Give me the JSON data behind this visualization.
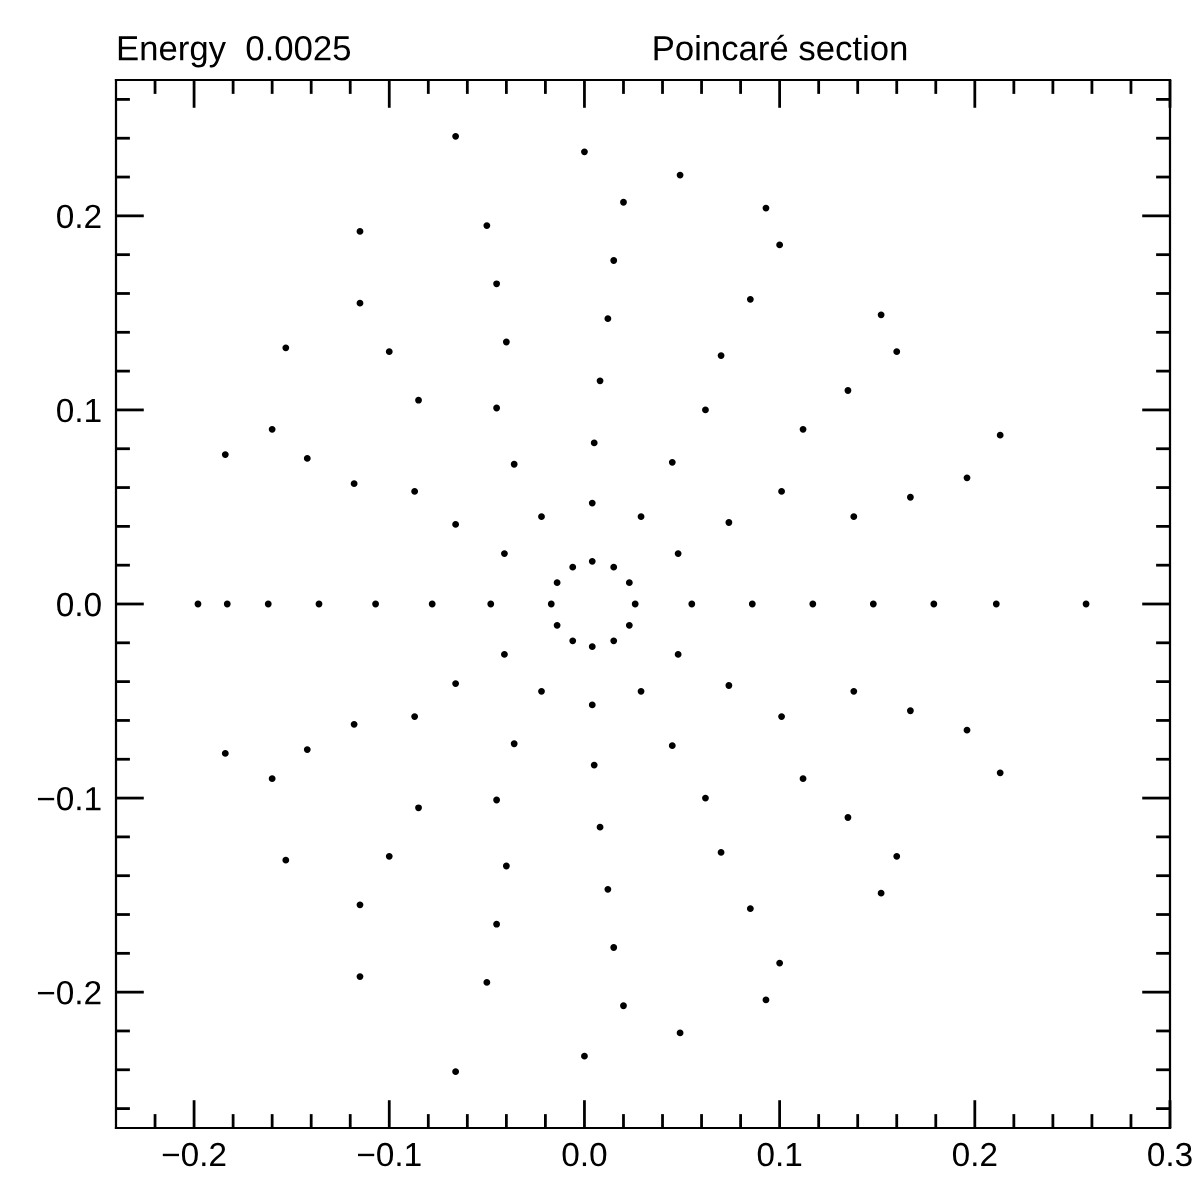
{
  "chart_data": {
    "type": "scatter",
    "title": "Poincaré section",
    "annotations": [
      "Energy  0.0025"
    ],
    "marker": "circle",
    "grid": false,
    "legend": false,
    "xlim": [
      -0.24,
      0.3
    ],
    "ylim": [
      -0.27,
      0.27
    ],
    "xticks": [
      {
        "value": -0.22,
        "label": null
      },
      {
        "value": -0.2,
        "label": "−0.2"
      },
      {
        "value": -0.18,
        "label": null
      },
      {
        "value": -0.16,
        "label": null
      },
      {
        "value": -0.14,
        "label": null
      },
      {
        "value": -0.12,
        "label": null
      },
      {
        "value": -0.1,
        "label": "−0.1"
      },
      {
        "value": -0.08,
        "label": null
      },
      {
        "value": -0.06,
        "label": null
      },
      {
        "value": -0.04,
        "label": null
      },
      {
        "value": -0.02,
        "label": null
      },
      {
        "value": 0.0,
        "label": "0.0"
      },
      {
        "value": 0.02,
        "label": null
      },
      {
        "value": 0.04,
        "label": null
      },
      {
        "value": 0.06,
        "label": null
      },
      {
        "value": 0.08,
        "label": null
      },
      0.1,
      {
        "value": 0.12,
        "label": null
      },
      {
        "value": 0.14,
        "label": null
      },
      {
        "value": 0.16,
        "label": null
      },
      {
        "value": 0.18,
        "label": null
      },
      0.2,
      {
        "value": 0.22,
        "label": null
      },
      {
        "value": 0.24,
        "label": null
      },
      {
        "value": 0.26,
        "label": null
      },
      {
        "value": 0.28,
        "label": null
      },
      0.3
    ],
    "yticks": [
      {
        "value": -0.26,
        "label": null
      },
      {
        "value": -0.24,
        "label": null
      },
      {
        "value": -0.22,
        "label": null
      },
      {
        "value": -0.2,
        "label": "−0.2"
      },
      {
        "value": -0.18,
        "label": null
      },
      {
        "value": -0.16,
        "label": null
      },
      {
        "value": -0.14,
        "label": null
      },
      {
        "value": -0.12,
        "label": null
      },
      {
        "value": -0.1,
        "label": "−0.1"
      },
      {
        "value": -0.08,
        "label": null
      },
      {
        "value": -0.06,
        "label": null
      },
      {
        "value": -0.04,
        "label": null
      },
      {
        "value": -0.02,
        "label": null
      },
      {
        "value": 0.0,
        "label": "0.0"
      },
      {
        "value": 0.02,
        "label": null
      },
      {
        "value": 0.04,
        "label": null
      },
      {
        "value": 0.06,
        "label": null
      },
      {
        "value": 0.08,
        "label": null
      },
      0.1,
      {
        "value": 0.12,
        "label": null
      },
      {
        "value": 0.14,
        "label": null
      },
      {
        "value": 0.16,
        "label": null
      },
      {
        "value": 0.18,
        "label": null
      },
      0.2,
      {
        "value": 0.22,
        "label": null
      },
      {
        "value": 0.24,
        "label": null
      },
      {
        "value": 0.26,
        "label": null
      }
    ],
    "series": [
      {
        "color": "#000000",
        "x": [
          0.026,
          0.023,
          0.015,
          0.004,
          -0.006,
          -0.014,
          -0.017,
          -0.014,
          -0.006,
          0.004,
          0.015,
          0.023
        ],
        "values": [
          0,
          0.011,
          0.019,
          0.022,
          0.019,
          0.011,
          0,
          -0.011,
          -0.019,
          -0.022,
          -0.019,
          -0.011
        ]
      },
      {
        "color": "#000000",
        "x": [
          0.055,
          0.048,
          0.029,
          0.004,
          -0.022,
          -0.041,
          -0.048,
          -0.041,
          -0.022,
          0.004,
          0.029,
          0.048
        ],
        "values": [
          0,
          0.026,
          0.045,
          0.052,
          0.045,
          0.026,
          0,
          -0.026,
          -0.045,
          -0.052,
          -0.045,
          -0.026
        ]
      },
      {
        "color": "#000000",
        "x": [
          0.086,
          0.074,
          0.045,
          0.005,
          -0.036,
          -0.066,
          -0.078,
          -0.066,
          -0.036,
          0.005,
          0.045,
          0.074
        ],
        "values": [
          0,
          0.042,
          0.073,
          0.083,
          0.072,
          0.041,
          0,
          -0.041,
          -0.072,
          -0.083,
          -0.073,
          -0.042
        ]
      },
      {
        "color": "#000000",
        "x": [
          0.117,
          0.101,
          0.062,
          0.008,
          -0.045,
          -0.087,
          -0.107,
          -0.087,
          -0.045,
          0.008,
          0.062,
          0.101
        ],
        "values": [
          0,
          0.058,
          0.1,
          0.115,
          0.101,
          0.058,
          0,
          -0.058,
          -0.101,
          -0.115,
          -0.1,
          -0.058
        ]
      },
      {
        "color": "#000000",
        "x": [
          0.148,
          0.138,
          0.112,
          0.07,
          0.012,
          -0.04,
          -0.085,
          -0.118,
          -0.136,
          -0.118,
          -0.085,
          -0.04,
          0.012,
          0.07,
          0.112,
          0.138
        ],
        "values": [
          0,
          0.045,
          0.09,
          0.128,
          0.147,
          0.135,
          0.105,
          0.062,
          0,
          -0.062,
          -0.105,
          -0.135,
          -0.147,
          -0.128,
          -0.09,
          -0.045
        ]
      },
      {
        "color": "#000000",
        "x": [
          0.179,
          0.167,
          0.135,
          0.085,
          0.015,
          -0.045,
          -0.1,
          -0.142,
          -0.162,
          -0.142,
          -0.1,
          -0.045,
          0.015,
          0.085,
          0.135,
          0.167
        ],
        "values": [
          0,
          0.055,
          0.11,
          0.157,
          0.177,
          0.165,
          0.13,
          0.075,
          0,
          -0.075,
          -0.13,
          -0.165,
          -0.177,
          -0.157,
          -0.11,
          -0.055
        ]
      },
      {
        "color": "#000000",
        "x": [
          0.211,
          0.196,
          0.16,
          0.1,
          0.02,
          -0.05,
          -0.115,
          -0.16,
          -0.183,
          -0.16,
          -0.115,
          -0.05,
          0.02,
          0.1,
          0.16,
          0.196
        ],
        "values": [
          0,
          0.065,
          0.13,
          0.185,
          0.207,
          0.195,
          0.155,
          0.09,
          0,
          -0.09,
          -0.155,
          -0.195,
          -0.207,
          -0.185,
          -0.13,
          -0.065
        ]
      },
      {
        "color": "#000000",
        "x": [
          0.257,
          0.213,
          0.152,
          0.093,
          0.049,
          0.0,
          -0.066,
          -0.115,
          -0.153,
          -0.184,
          -0.198,
          -0.184,
          -0.153,
          -0.115,
          -0.066,
          0.0,
          0.049,
          0.093,
          0.152,
          0.213
        ],
        "values": [
          0,
          0.087,
          0.149,
          0.204,
          0.221,
          0.233,
          0.241,
          0.192,
          0.132,
          0.077,
          0,
          -0.077,
          -0.132,
          -0.192,
          -0.241,
          -0.233,
          -0.221,
          -0.204,
          -0.149,
          -0.087
        ]
      }
    ]
  }
}
